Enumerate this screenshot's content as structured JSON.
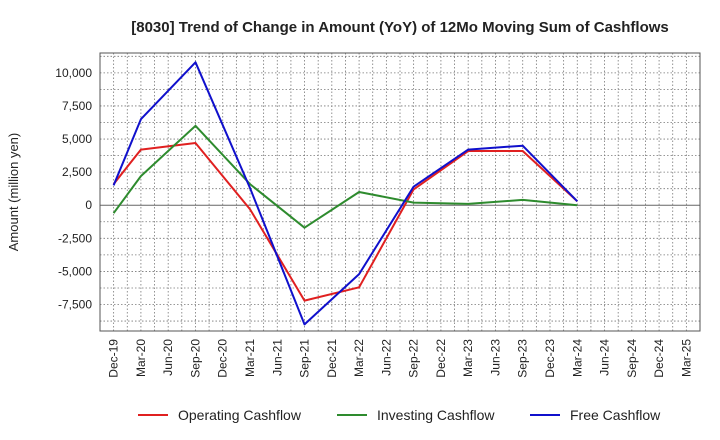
{
  "chart_data": {
    "type": "line",
    "title": "[8030]  Trend of Change in Amount (YoY) of 12Mo Moving Sum of Cashflows",
    "xlabel": "",
    "ylabel": "Amount (million yen)",
    "ylim": [
      -9500,
      11500
    ],
    "yticks": [
      10000,
      7500,
      5000,
      2500,
      0,
      -2500,
      -5000,
      -7500
    ],
    "ytick_labels": [
      "10,000",
      "7,500",
      "5,000",
      "2,500",
      "0",
      "-2,500",
      "-5,000",
      "-7,500"
    ],
    "categories": [
      "Dec-19",
      "Mar-20",
      "Jun-20",
      "Sep-20",
      "Dec-20",
      "Mar-21",
      "Jun-21",
      "Sep-21",
      "Dec-21",
      "Mar-22",
      "Jun-22",
      "Sep-22",
      "Dec-22",
      "Mar-23",
      "Jun-23",
      "Sep-23",
      "Dec-23",
      "Mar-24",
      "Jun-24",
      "Sep-24",
      "Dec-24",
      "Mar-25"
    ],
    "grid": true,
    "legend_position": "bottom",
    "series": [
      {
        "name": "Operating Cashflow",
        "color": "#e02020",
        "values": [
          1600,
          4200,
          null,
          4700,
          null,
          -300,
          null,
          -7200,
          null,
          -6200,
          null,
          1200,
          null,
          4100,
          null,
          4100,
          null,
          300,
          null,
          null,
          null,
          null
        ]
      },
      {
        "name": "Investing Cashflow",
        "color": "#2e8b2e",
        "values": [
          -600,
          2200,
          null,
          6000,
          null,
          1600,
          null,
          -1700,
          null,
          1000,
          null,
          200,
          null,
          100,
          null,
          400,
          null,
          0,
          null,
          null,
          null,
          null
        ]
      },
      {
        "name": "Free Cashflow",
        "color": "#1010cc",
        "values": [
          1500,
          6500,
          null,
          10800,
          null,
          1300,
          null,
          -9000,
          null,
          -5200,
          null,
          1400,
          null,
          4200,
          null,
          4500,
          null,
          300,
          null,
          null,
          null,
          null
        ]
      }
    ]
  }
}
